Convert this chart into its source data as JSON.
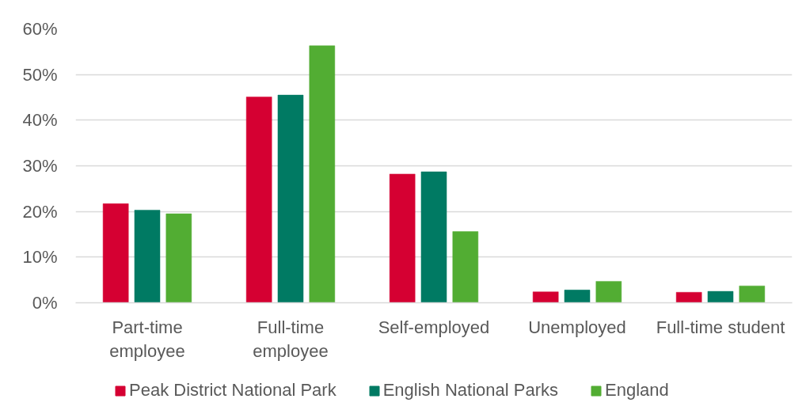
{
  "chart_data": {
    "type": "bar",
    "categories": [
      "Part-time employee",
      "Full-time employee",
      "Self-employed",
      "Unemployed",
      "Full-time student"
    ],
    "series": [
      {
        "name": "Peak District National Park",
        "color": "#d50032",
        "values": [
          21.7,
          45.1,
          28.2,
          2.4,
          2.3
        ]
      },
      {
        "name": "English National Parks",
        "color": "#007a63",
        "values": [
          20.3,
          45.5,
          28.7,
          2.8,
          2.5
        ]
      },
      {
        "name": "England",
        "color": "#52ad33",
        "values": [
          19.5,
          56.3,
          15.6,
          4.7,
          3.7
        ]
      }
    ],
    "ylim": [
      0,
      60
    ],
    "yticks": [
      {
        "value": 0,
        "label": "0%"
      },
      {
        "value": 10,
        "label": "10%"
      },
      {
        "value": 20,
        "label": "20%"
      },
      {
        "value": 30,
        "label": "30%"
      },
      {
        "value": 40,
        "label": "40%"
      },
      {
        "value": 50,
        "label": "50%"
      },
      {
        "value": 60,
        "label": "60%"
      }
    ],
    "grid": "y",
    "legend": "bottom"
  }
}
